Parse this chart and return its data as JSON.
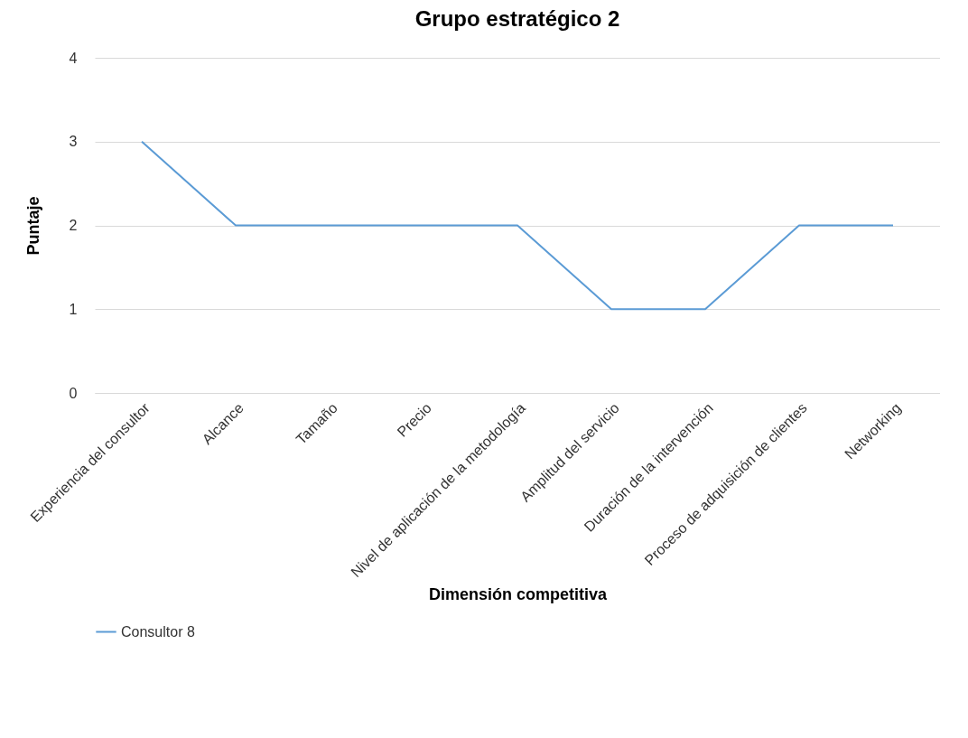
{
  "chart_data": {
    "type": "line",
    "title": "Grupo estratégico 2",
    "xlabel": "Dimensión competitiva",
    "ylabel": "Puntaje",
    "categories": [
      "Experiencia del consultor",
      "Alcance",
      "Tamaño",
      "Precio",
      "Nivel de aplicación de la metodología",
      "Amplitud del servicio",
      "Duración de la intervención",
      "Proceso de adquisición de clientes",
      "Networking"
    ],
    "series": [
      {
        "name": "Consultor 8",
        "color": "#5b9bd5",
        "values": [
          3,
          2,
          2,
          2,
          2,
          1,
          1,
          2,
          2
        ]
      }
    ],
    "ylim": [
      0,
      4
    ],
    "yticks": [
      0,
      1,
      2,
      3,
      4
    ],
    "grid": "y",
    "legend": "bottom",
    "marker": "none",
    "line_style": "solid"
  }
}
